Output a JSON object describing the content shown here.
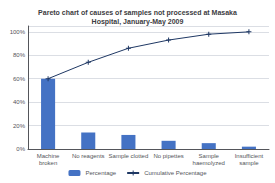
{
  "chart_data": {
    "type": "bar",
    "title": "Pareto chart of causes of samples not processed at Masaka\nHospital, January-May 2009",
    "categories": [
      "Machine\nbroken",
      "No reagents",
      "Sample clotted",
      "No pipettes",
      "Sample\nhaemolyzed",
      "Insufficient\nsample"
    ],
    "series": [
      {
        "name": "Percentage",
        "type": "bar",
        "color": "#4472c4",
        "values": [
          60,
          14,
          12,
          7,
          5,
          2
        ]
      },
      {
        "name": "Cumulative Percentage",
        "type": "line",
        "color": "#1f3864",
        "marker": "plus",
        "values": [
          60,
          74,
          86,
          93,
          98,
          100
        ]
      }
    ],
    "ylim": [
      0,
      105
    ],
    "yticks": [
      {
        "value": 0,
        "label": "0%"
      },
      {
        "value": 20,
        "label": "20%"
      },
      {
        "value": 40,
        "label": "40%"
      },
      {
        "value": 60,
        "label": "60%"
      },
      {
        "value": 80,
        "label": "80%"
      },
      {
        "value": 100,
        "label": "100%"
      }
    ],
    "grid": true,
    "legend": "bottom"
  }
}
